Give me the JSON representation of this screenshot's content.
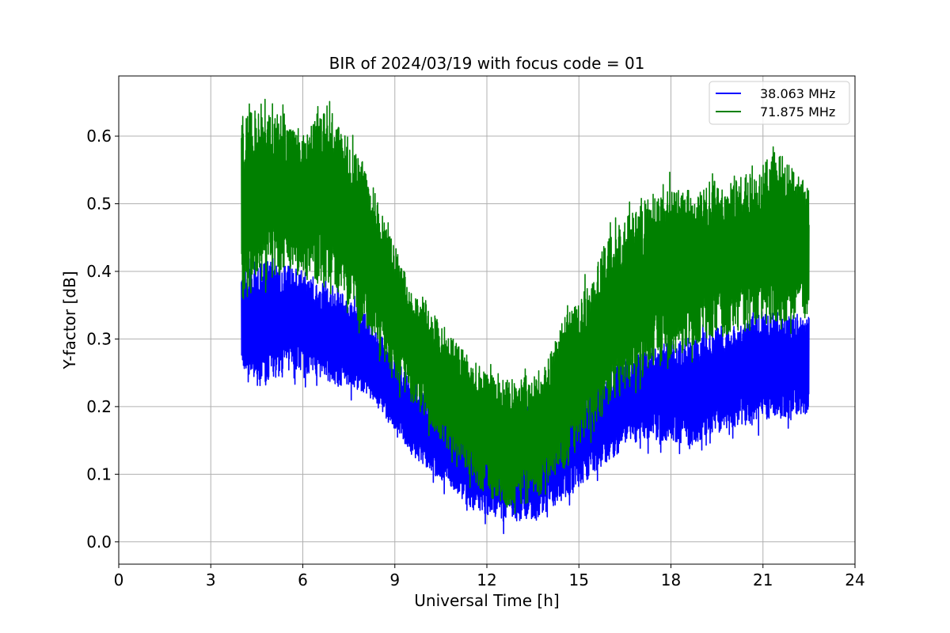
{
  "chart_data": {
    "type": "line",
    "title": "BIR of 2024/03/19 with focus code = 01",
    "xlabel": "Universal Time [h]",
    "ylabel": "Y-factor [dB]",
    "xlim": [
      0,
      24
    ],
    "ylim": [
      -0.033,
      0.689
    ],
    "xticks": [
      "0",
      "3",
      "6",
      "9",
      "12",
      "15",
      "18",
      "21",
      "24"
    ],
    "yticks": [
      "0.0",
      "0.1",
      "0.2",
      "0.3",
      "0.4",
      "0.5",
      "0.6"
    ],
    "grid": true,
    "legend_position": "top-right",
    "series": [
      {
        "name": "38.063 MHz",
        "color": "#0000ff",
        "x": [
          4.0,
          4.5,
          5.0,
          5.5,
          6.0,
          6.5,
          7.0,
          7.5,
          8.0,
          8.5,
          9.0,
          9.5,
          10.0,
          10.5,
          11.0,
          11.5,
          12.0,
          12.5,
          13.0,
          13.5,
          14.0,
          14.5,
          15.0,
          15.5,
          16.0,
          16.5,
          17.0,
          17.5,
          18.0,
          18.5,
          19.0,
          19.5,
          20.0,
          20.5,
          21.0,
          21.5,
          22.0,
          22.5
        ],
        "low": [
          0.26,
          0.22,
          0.24,
          0.25,
          0.25,
          0.24,
          0.23,
          0.23,
          0.22,
          0.2,
          0.16,
          0.13,
          0.11,
          0.09,
          0.07,
          0.05,
          0.04,
          0.03,
          0.03,
          0.03,
          0.05,
          0.06,
          0.08,
          0.1,
          0.12,
          0.14,
          0.15,
          0.15,
          0.15,
          0.14,
          0.15,
          0.16,
          0.17,
          0.17,
          0.18,
          0.18,
          0.18,
          0.19
        ],
        "high": [
          0.4,
          0.41,
          0.42,
          0.41,
          0.4,
          0.39,
          0.38,
          0.36,
          0.34,
          0.31,
          0.27,
          0.25,
          0.22,
          0.21,
          0.2,
          0.19,
          0.2,
          0.2,
          0.2,
          0.2,
          0.2,
          0.21,
          0.22,
          0.24,
          0.26,
          0.27,
          0.28,
          0.29,
          0.3,
          0.3,
          0.31,
          0.32,
          0.32,
          0.33,
          0.34,
          0.34,
          0.34,
          0.34
        ]
      },
      {
        "name": "71.875 MHz",
        "color": "#008000",
        "x": [
          4.0,
          4.5,
          5.0,
          5.5,
          6.0,
          6.5,
          7.0,
          7.5,
          8.0,
          8.5,
          9.0,
          9.5,
          10.0,
          10.5,
          11.0,
          11.5,
          12.0,
          12.5,
          13.0,
          13.5,
          14.0,
          14.5,
          15.0,
          15.5,
          16.0,
          16.5,
          17.0,
          17.5,
          18.0,
          18.5,
          19.0,
          19.5,
          20.0,
          20.5,
          21.0,
          21.5,
          22.0,
          22.5
        ],
        "low": [
          0.35,
          0.38,
          0.39,
          0.4,
          0.39,
          0.38,
          0.37,
          0.35,
          0.31,
          0.28,
          0.24,
          0.21,
          0.18,
          0.15,
          0.12,
          0.09,
          0.07,
          0.05,
          0.05,
          0.06,
          0.08,
          0.11,
          0.14,
          0.17,
          0.2,
          0.22,
          0.24,
          0.26,
          0.27,
          0.28,
          0.29,
          0.3,
          0.31,
          0.31,
          0.32,
          0.32,
          0.33,
          0.33
        ],
        "high": [
          0.63,
          0.64,
          0.65,
          0.62,
          0.6,
          0.64,
          0.63,
          0.6,
          0.56,
          0.5,
          0.44,
          0.38,
          0.36,
          0.32,
          0.3,
          0.27,
          0.25,
          0.24,
          0.24,
          0.25,
          0.27,
          0.33,
          0.36,
          0.4,
          0.46,
          0.48,
          0.5,
          0.52,
          0.53,
          0.52,
          0.53,
          0.54,
          0.54,
          0.55,
          0.56,
          0.58,
          0.55,
          0.53
        ]
      }
    ]
  }
}
